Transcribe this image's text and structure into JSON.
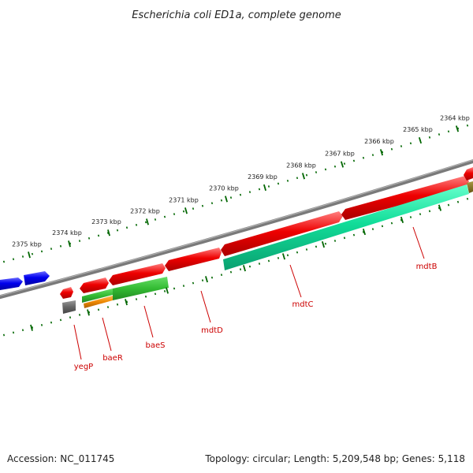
{
  "title": "Escherichia coli ED1a, complete genome",
  "footer": {
    "accession": "Accession: NC_011745",
    "topology": "Topology: circular; Length: 5,209,548 bp; Genes: 5,118"
  },
  "ruler": {
    "unit": "kbp",
    "ticks": [
      {
        "value": 2375,
        "label": "2375 kbp"
      },
      {
        "value": 2374,
        "label": "2374 kbp"
      },
      {
        "value": 2373,
        "label": "2373 kbp"
      },
      {
        "value": 2372,
        "label": "2372 kbp"
      },
      {
        "value": 2371,
        "label": "2371 kbp"
      },
      {
        "value": 2370,
        "label": "2370 kbp"
      },
      {
        "value": 2369,
        "label": "2369 kbp"
      },
      {
        "value": 2368,
        "label": "2368 kbp"
      },
      {
        "value": 2367,
        "label": "2367 kbp"
      },
      {
        "value": 2366,
        "label": "2366 kbp"
      },
      {
        "value": 2365,
        "label": "2365 kbp"
      },
      {
        "value": 2364,
        "label": "2364 kbp"
      }
    ]
  },
  "gene_labels": [
    "yegP",
    "baeR",
    "baeS",
    "mdtD",
    "mdtC",
    "mdtB"
  ],
  "colors": {
    "cds": "#ee0000",
    "cds_other": "#0000ee",
    "cog_teal": "#11dd99",
    "cog_green": "#33bb33",
    "cog_orange": "#ee8800",
    "cog_gray": "#666666",
    "backbone": "#808080",
    "tick": "#006600",
    "label": "#cc0000"
  }
}
